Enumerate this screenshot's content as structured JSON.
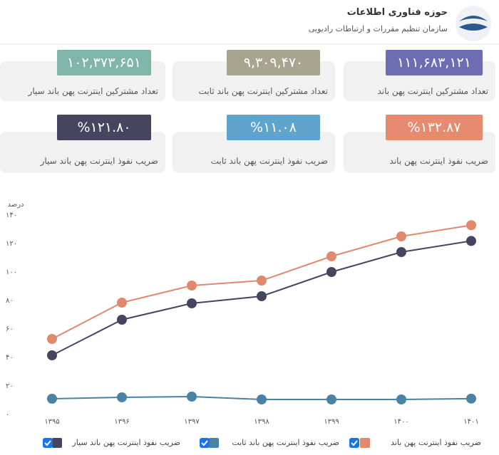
{
  "header": {
    "title": "حوزه فناوری اطلاعات",
    "subtitle": "سازمان تنظیم مقررات و ارتباطات رادیویی"
  },
  "cards": [
    {
      "value": "۱۱۱,۶۸۳,۱۲۱",
      "label": "تعداد مشترکین اینترنت پهن باند",
      "color": "#6e6db2"
    },
    {
      "value": "۹,۳۰۹,۴۷۰",
      "label": "تعداد مشترکین اینترنت پهن باند ثابت",
      "color": "#a7a48f"
    },
    {
      "value": "۱۰۲,۳۷۳,۶۵۱",
      "label": "تعداد مشترکین اینترنت پهن باند سیار",
      "color": "#7fb6a9"
    },
    {
      "value": "%۱۳۲.۸۷",
      "label": "ضریب نفوذ اینترنت پهن باند",
      "color": "#e68a70"
    },
    {
      "value": "%۱۱.۰۸",
      "label": "ضریب نفوذ اینترنت پهن باند ثابت",
      "color": "#5fa4cc"
    },
    {
      "value": "%۱۲۱.۸۰",
      "label": "ضریب نفوذ اینترنت پهن باند سیار",
      "color": "#454560"
    }
  ],
  "chart_data": {
    "type": "line",
    "y_label": "درصد",
    "categories": [
      "۱۳۹۵",
      "۱۳۹۶",
      "۱۳۹۷",
      "۱۳۹۸",
      "۱۳۹۹",
      "۱۴۰۰",
      "۱۴۰۱"
    ],
    "ylim": [
      0,
      140
    ],
    "yticks": [
      {
        "value": 0,
        "label": "۰"
      },
      {
        "value": 20,
        "label": "۲۰"
      },
      {
        "value": 40,
        "label": "۴۰"
      },
      {
        "value": 60,
        "label": "۶۰"
      },
      {
        "value": 80,
        "label": "۸۰"
      },
      {
        "value": 100,
        "label": "۱۰۰"
      },
      {
        "value": 120,
        "label": "۱۲۰"
      },
      {
        "value": 140,
        "label": "۱۴۰"
      }
    ],
    "series": [
      {
        "name": "ضریب نفوذ اینترنت پهن باند",
        "color": "#e0896f",
        "values": [
          53,
          78.5,
          90.5,
          94,
          111,
          125,
          132.87
        ]
      },
      {
        "name": "ضریب نفوذ اینترنت پهن باند ثابت",
        "color": "#4a82a3",
        "values": [
          11,
          12,
          12.5,
          10.5,
          10.5,
          10.5,
          11.08
        ]
      },
      {
        "name": "ضریب نفوذ اینترنت پهن باند سیار",
        "color": "#454560",
        "values": [
          41.5,
          66.5,
          78,
          83,
          100,
          114,
          121.8
        ]
      }
    ]
  }
}
